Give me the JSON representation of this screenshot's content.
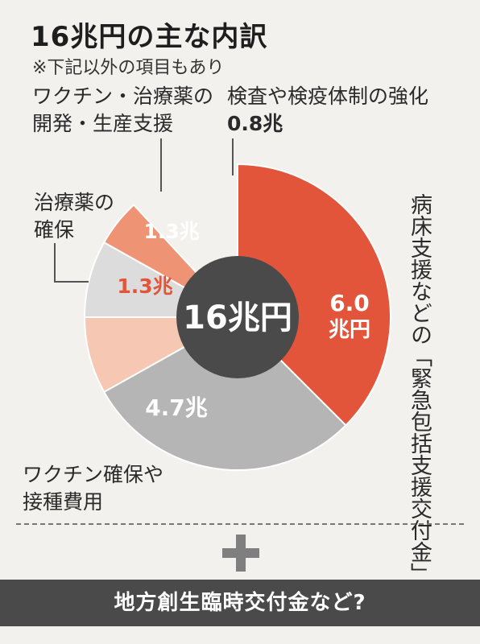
{
  "title": "16兆円の主な内訳",
  "subtitle": "※下記以外の項目もあり",
  "chart_data": {
    "type": "pie",
    "title": "16兆円の主な内訳",
    "center_label": "16兆円",
    "total": 16,
    "unit": "兆円",
    "slices": [
      {
        "name": "病床支援などの「緊急包括支援交付金」",
        "value": 6.0,
        "value_label_1": "6.0",
        "value_label_2": "兆円",
        "color": "#e2553a"
      },
      {
        "name": "ワクチン確保や接種費用",
        "value": 4.7,
        "value_label": "4.7兆",
        "color": "#b5b5b5"
      },
      {
        "name": "治療薬の確保",
        "value": 1.3,
        "value_label": "1.3兆",
        "color": "#f6c7b2"
      },
      {
        "name": "ワクチン・治療薬の開発・生産支援",
        "value": 1.3,
        "value_label": "1.3兆",
        "color": "#dcdcdc"
      },
      {
        "name": "検査や検疫体制の強化",
        "value": 0.8,
        "value_label": "0.8兆",
        "color": "#ee9474"
      }
    ]
  },
  "labels": {
    "vaccine_dev_line1": "ワクチン・治療薬の",
    "vaccine_dev_line2": "開発・生産支援",
    "inspection": "検査や検疫体制の強化",
    "inspection_value": "0.8兆",
    "drug_line1": "治療薬の",
    "drug_line2": "確保",
    "vaccine_line1": "ワクチン確保や",
    "vaccine_line2": "接種費用",
    "emergency_vertical": "病床支援などの「緊急包括支援交付金」"
  },
  "footer": {
    "banner": "地方創生臨時交付金など?"
  }
}
